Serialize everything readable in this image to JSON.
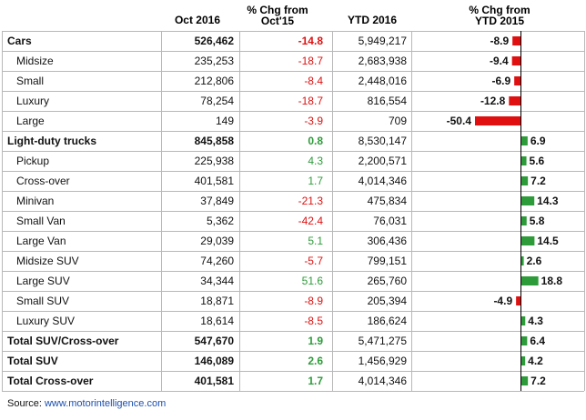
{
  "chart_data": {
    "type": "table",
    "headers": {
      "oct2016": "Oct 2016",
      "pct_oct15_line1": "% Chg from",
      "pct_oct15_line2": "Oct'15",
      "ytd2016": "YTD 2016",
      "pct_ytd15_line1": "% Chg from",
      "pct_ytd15_line2": "YTD 2015"
    },
    "rows": [
      {
        "label": "Cars",
        "oct": "526,462",
        "chg": -14.8,
        "chg_text": "-14.8",
        "ytd": "5,949,217",
        "ytd_chg": -8.9,
        "ytd_chg_text": "-8.9",
        "bold": true,
        "indent": false
      },
      {
        "label": "Midsize",
        "oct": "235,253",
        "chg": -18.7,
        "chg_text": "-18.7",
        "ytd": "2,683,938",
        "ytd_chg": -9.4,
        "ytd_chg_text": "-9.4",
        "bold": false,
        "indent": true
      },
      {
        "label": "Small",
        "oct": "212,806",
        "chg": -8.4,
        "chg_text": "-8.4",
        "ytd": "2,448,016",
        "ytd_chg": -6.9,
        "ytd_chg_text": "-6.9",
        "bold": false,
        "indent": true
      },
      {
        "label": "Luxury",
        "oct": "78,254",
        "chg": -18.7,
        "chg_text": "-18.7",
        "ytd": "816,554",
        "ytd_chg": -12.8,
        "ytd_chg_text": "-12.8",
        "bold": false,
        "indent": true
      },
      {
        "label": "Large",
        "oct": "149",
        "chg": -3.9,
        "chg_text": "-3.9",
        "ytd": "709",
        "ytd_chg": -50.4,
        "ytd_chg_text": "-50.4",
        "bold": false,
        "indent": true
      },
      {
        "label": "Light-duty trucks",
        "oct": "845,858",
        "chg": 0.8,
        "chg_text": "0.8",
        "ytd": "8,530,147",
        "ytd_chg": 6.9,
        "ytd_chg_text": "6.9",
        "bold": true,
        "indent": false
      },
      {
        "label": "Pickup",
        "oct": "225,938",
        "chg": 4.3,
        "chg_text": "4.3",
        "ytd": "2,200,571",
        "ytd_chg": 5.6,
        "ytd_chg_text": "5.6",
        "bold": false,
        "indent": true
      },
      {
        "label": "Cross-over",
        "oct": "401,581",
        "chg": 1.7,
        "chg_text": "1.7",
        "ytd": "4,014,346",
        "ytd_chg": 7.2,
        "ytd_chg_text": "7.2",
        "bold": false,
        "indent": true
      },
      {
        "label": "Minivan",
        "oct": "37,849",
        "chg": -21.3,
        "chg_text": "-21.3",
        "ytd": "475,834",
        "ytd_chg": 14.3,
        "ytd_chg_text": "14.3",
        "bold": false,
        "indent": true
      },
      {
        "label": "Small Van",
        "oct": "5,362",
        "chg": -42.4,
        "chg_text": "-42.4",
        "ytd": "76,031",
        "ytd_chg": 5.8,
        "ytd_chg_text": "5.8",
        "bold": false,
        "indent": true
      },
      {
        "label": "Large Van",
        "oct": "29,039",
        "chg": 5.1,
        "chg_text": "5.1",
        "ytd": "306,436",
        "ytd_chg": 14.5,
        "ytd_chg_text": "14.5",
        "bold": false,
        "indent": true
      },
      {
        "label": "Midsize SUV",
        "oct": "74,260",
        "chg": -5.7,
        "chg_text": "-5.7",
        "ytd": "799,151",
        "ytd_chg": 2.6,
        "ytd_chg_text": "2.6",
        "bold": false,
        "indent": true
      },
      {
        "label": "Large SUV",
        "oct": "34,344",
        "chg": 51.6,
        "chg_text": "51.6",
        "ytd": "265,760",
        "ytd_chg": 18.8,
        "ytd_chg_text": "18.8",
        "bold": false,
        "indent": true
      },
      {
        "label": "Small SUV",
        "oct": "18,871",
        "chg": -8.9,
        "chg_text": "-8.9",
        "ytd": "205,394",
        "ytd_chg": -4.9,
        "ytd_chg_text": "-4.9",
        "bold": false,
        "indent": true
      },
      {
        "label": "Luxury SUV",
        "oct": "18,614",
        "chg": -8.5,
        "chg_text": "-8.5",
        "ytd": "186,624",
        "ytd_chg": 4.3,
        "ytd_chg_text": "4.3",
        "bold": false,
        "indent": true
      },
      {
        "label": "Total SUV/Cross-over",
        "oct": "547,670",
        "chg": 1.9,
        "chg_text": "1.9",
        "ytd": "5,471,275",
        "ytd_chg": 6.4,
        "ytd_chg_text": "6.4",
        "bold": true,
        "indent": false
      },
      {
        "label": "Total SUV",
        "oct": "146,089",
        "chg": 2.6,
        "chg_text": "2.6",
        "ytd": "1,456,929",
        "ytd_chg": 4.2,
        "ytd_chg_text": "4.2",
        "bold": true,
        "indent": false
      },
      {
        "label": "Total Cross-over",
        "oct": "401,581",
        "chg": 1.7,
        "chg_text": "1.7",
        "ytd": "4,014,346",
        "ytd_chg": 7.2,
        "ytd_chg_text": "7.2",
        "bold": true,
        "indent": false
      }
    ],
    "bar_axis_range": [
      -50.4,
      18.8
    ],
    "colors": {
      "positive": "#2e9b3a",
      "negative": "#e01010",
      "text": "#111111",
      "grid": "#b8b8b8"
    },
    "source_label": "Source: ",
    "source_link": "www.motorintelligence.com"
  }
}
